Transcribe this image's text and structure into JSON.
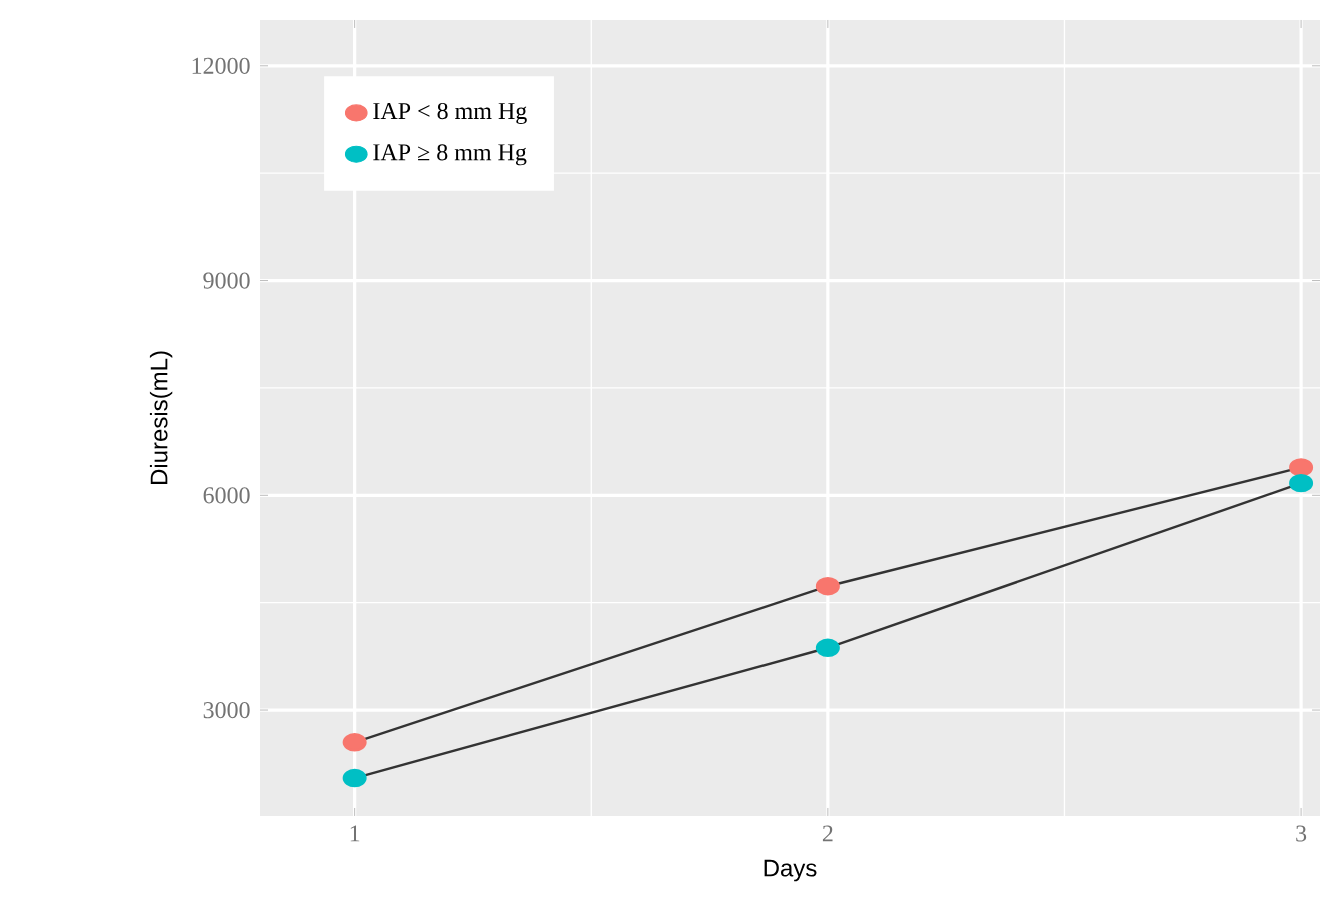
{
  "chart_data": {
    "type": "line",
    "xlabel": "Days",
    "ylabel": "Diuresis(mL)",
    "x": [
      1,
      2,
      3
    ],
    "series": [
      {
        "name": "IAP < 8 mm Hg",
        "color": "#f8766d",
        "values": [
          2550,
          4730,
          6390
        ]
      },
      {
        "name": "IAP ≥ 8 mm Hg",
        "color": "#00bfc4",
        "values": [
          2050,
          3870,
          6170
        ]
      }
    ],
    "xlim": [
      0.8,
      3.04
    ],
    "xticks": [
      1,
      2,
      3
    ],
    "ylim": [
      1520,
      12640
    ],
    "yticks": [
      3000,
      6000,
      9000,
      12000
    ],
    "grid": true,
    "legend": "top left",
    "marker": "circle",
    "line_style": "solid"
  }
}
